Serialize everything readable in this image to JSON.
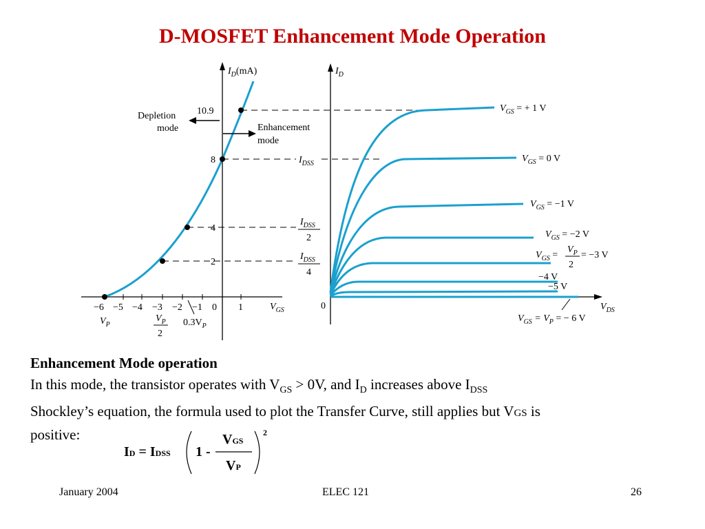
{
  "slide": {
    "title": "D-MOSFET Enhancement Mode Operation",
    "footer": {
      "date": "January 2004",
      "course": "ELEC 121",
      "page": "26"
    }
  },
  "transfer_curve": {
    "y_axis_label_main": "I",
    "y_axis_label_sub": "D",
    "y_axis_unit": "(mA)",
    "x_axis_label_main": "V",
    "x_axis_label_sub": "GS",
    "y_ticks": [
      {
        "label": "10.9"
      },
      {
        "label": "8"
      },
      {
        "label": "4"
      },
      {
        "label": "2"
      }
    ],
    "x_ticks": [
      "−6",
      "−5",
      "−4",
      "−3",
      "−2",
      "−1",
      "0",
      "1"
    ],
    "vp_label": "V",
    "vp_sub": "P",
    "vp_half_num": "V",
    "vp_half_num_sub": "P",
    "vp_half_den": "2",
    "point_three_vp": "0.3V",
    "point_three_vp_sub": "P",
    "depletion_label_line1": "Depletion",
    "depletion_label_line2": "mode",
    "enhancement_label_line1": "Enhancement",
    "enhancement_label_line2": "mode"
  },
  "drain_curves": {
    "y_axis_label_main": "I",
    "y_axis_label_sub": "D",
    "x_axis_label_main": "V",
    "x_axis_label_sub": "DS",
    "origin_label": "0",
    "idss_main": "I",
    "idss_sub": "DSS",
    "idss_half_den": "2",
    "idss_quarter_den": "4",
    "curves": [
      {
        "label": "V",
        "sub": "GS",
        "value": " = + 1 V"
      },
      {
        "label": "V",
        "sub": "GS",
        "value": " = 0 V"
      },
      {
        "label": "V",
        "sub": "GS",
        "value": " = −1 V"
      },
      {
        "label": "V",
        "sub": "GS",
        "value": " = −2  V"
      },
      {
        "label": "V",
        "sub": "GS",
        "value": " = ",
        "frac_num": "V",
        "frac_num_sub": "P",
        "frac_den": "2",
        "suffix": " = −3 V"
      },
      {
        "label": "",
        "value": "−4 V"
      },
      {
        "label": "",
        "value": "−5 V"
      }
    ],
    "cutoff_label_v": "V",
    "cutoff_label_sub": "GS",
    "cutoff_label_mid": " = V",
    "cutoff_label_mid_sub": "P",
    "cutoff_label_end": " = − 6 V"
  },
  "body_text": {
    "heading": "Enhancement Mode operation",
    "line1_a": "In this mode, the transistor operates with V",
    "line1_sub1": "GS",
    "line1_b": " > 0V, and I",
    "line1_sub2": "D",
    "line1_c": " increases above I",
    "line1_sub3": "DSS",
    "line2_a": "Shockley’s equation, the formula used to plot the Transfer Curve, still applies but V",
    "line2_sub": "GS",
    "line2_b": " is",
    "line3": "positive:"
  },
  "formula": {
    "id_main": "I",
    "id_sub": "D",
    "equals": " = ",
    "idss_main": "I",
    "idss_sub": "DSS",
    "one_minus": "1 -",
    "num_main": "V",
    "num_sub": "GS",
    "den_main": "V",
    "den_sub": "P",
    "exponent": "2"
  },
  "colors": {
    "title": "#c00000",
    "curve": "#1aa0cf"
  }
}
